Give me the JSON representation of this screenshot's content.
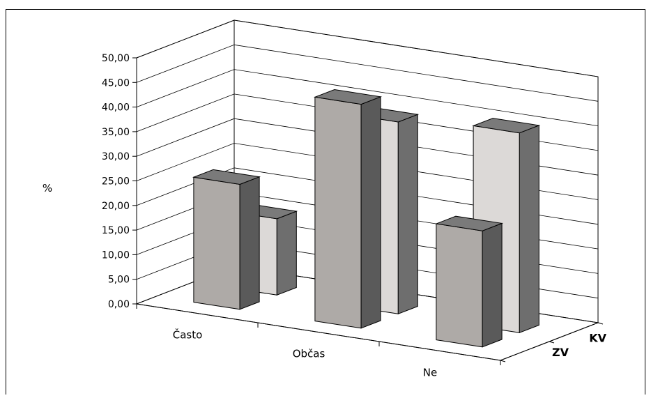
{
  "chart_data": {
    "type": "bar",
    "title": "",
    "ylabel": "%",
    "xlabel": "",
    "categories": [
      "Často",
      "Občas",
      "Ne"
    ],
    "series": [
      {
        "name": "ZV",
        "values": [
          25.4,
          45.5,
          23.6
        ],
        "color": "#aeaaa7"
      },
      {
        "name": "KV",
        "values": [
          15.5,
          39.0,
          40.6
        ],
        "color": "#dcd9d7"
      }
    ],
    "ylim": [
      0,
      50
    ],
    "yticks": [
      "0,00",
      "5,00",
      "10,00",
      "15,00",
      "20,00",
      "25,00",
      "30,00",
      "35,00",
      "40,00",
      "45,00",
      "50,00"
    ],
    "depth_labels": [
      "ZV",
      "KV"
    ],
    "grid": true,
    "style": "3d-column",
    "colors": {
      "side": "#5a5a5a",
      "side_back": "#6e6e6e",
      "top": "#7a7a7a",
      "grid": "#000000"
    }
  }
}
